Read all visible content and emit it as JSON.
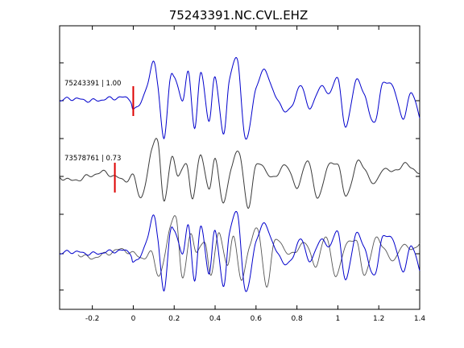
{
  "chart_data": {
    "type": "line",
    "title": "75243391.NC.CVL.EHZ",
    "xlabel": "",
    "ylabel": "",
    "xlim": [
      -0.36,
      1.4
    ],
    "x_ticks": [
      -0.2,
      0,
      0.2,
      0.4,
      0.6,
      0.8,
      1,
      1.2,
      1.4
    ],
    "x_tick_labels": [
      "-0.2",
      "0",
      "0.2",
      "0.4",
      "0.6",
      "0.8",
      "1",
      "1.2",
      "1.4"
    ],
    "grid": false,
    "colors": {
      "master": "#0000cc",
      "event": "#3a3a3a",
      "pick": "#dd0000",
      "axis": "#000000"
    },
    "traces": [
      {
        "label": "75243391 | 1.00",
        "color": "#0000cc",
        "pick_time": 0.0,
        "key_times": [
          -0.36,
          -0.3,
          -0.2,
          -0.1,
          -0.02,
          0.0,
          0.03,
          0.07,
          0.1,
          0.12,
          0.15,
          0.18,
          0.2,
          0.24,
          0.27,
          0.3,
          0.33,
          0.37,
          0.4,
          0.44,
          0.47,
          0.51,
          0.55,
          0.6,
          0.64,
          0.68,
          0.73,
          0.78,
          0.82,
          0.86,
          0.91,
          0.96,
          1.0,
          1.04,
          1.09,
          1.13,
          1.18,
          1.22,
          1.27,
          1.32,
          1.36,
          1.4
        ],
        "key_values": [
          0.0,
          0.05,
          0.0,
          0.06,
          0.05,
          -0.2,
          -0.1,
          0.4,
          0.9,
          0.4,
          -0.9,
          0.5,
          0.6,
          0.0,
          0.7,
          -0.7,
          0.7,
          -0.5,
          0.6,
          -0.8,
          0.5,
          0.9,
          -0.9,
          0.3,
          0.7,
          0.3,
          -0.2,
          -0.1,
          0.4,
          -0.2,
          0.3,
          0.2,
          0.5,
          -0.6,
          0.5,
          0.1,
          -0.5,
          0.4,
          0.3,
          -0.4,
          0.2,
          -0.4
        ]
      },
      {
        "label": "73578761 | 0.73",
        "color": "#3a3a3a",
        "pick_time": -0.09,
        "key_times": [
          -0.36,
          -0.3,
          -0.22,
          -0.15,
          -0.09,
          -0.04,
          0.0,
          0.04,
          0.09,
          0.12,
          0.15,
          0.19,
          0.22,
          0.26,
          0.29,
          0.33,
          0.37,
          0.4,
          0.44,
          0.48,
          0.52,
          0.56,
          0.6,
          0.65,
          0.7,
          0.75,
          0.8,
          0.85,
          0.9,
          0.95,
          1.0,
          1.04,
          1.09,
          1.13,
          1.18,
          1.22,
          1.27,
          1.32,
          1.36,
          1.4
        ],
        "key_values": [
          0.0,
          -0.1,
          0.0,
          0.1,
          0.0,
          -0.1,
          0.0,
          -0.5,
          0.6,
          0.9,
          -0.6,
          0.5,
          0.0,
          0.3,
          -0.5,
          0.5,
          -0.3,
          0.4,
          -0.6,
          0.2,
          0.6,
          -0.8,
          0.3,
          0.1,
          0.0,
          0.3,
          -0.3,
          0.4,
          -0.5,
          0.2,
          0.3,
          -0.5,
          0.3,
          0.2,
          -0.2,
          0.2,
          0.1,
          0.3,
          0.2,
          0.1
        ]
      }
    ]
  }
}
